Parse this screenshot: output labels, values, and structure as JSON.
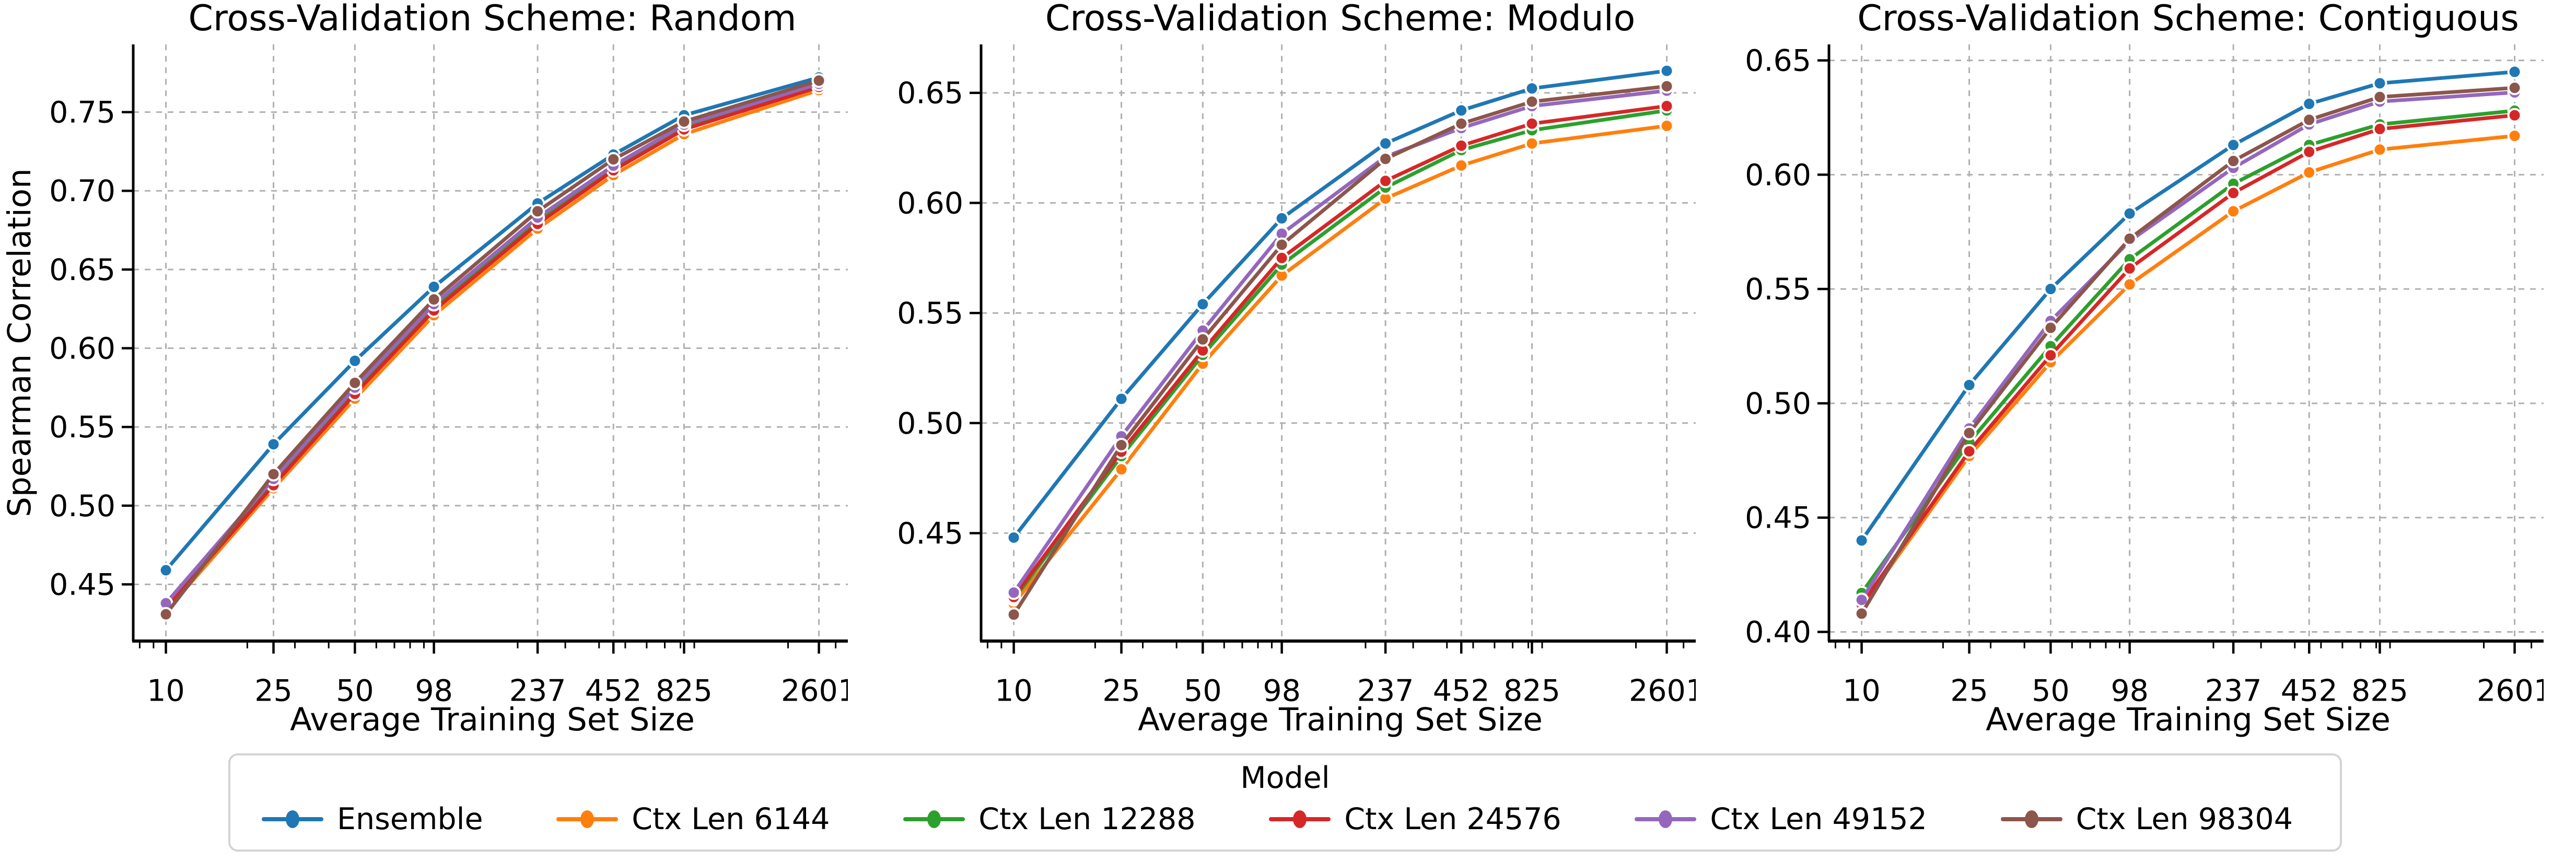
{
  "legend": {
    "title": "Model",
    "entries": [
      {
        "label": "Ensemble",
        "color": "#1f77b4"
      },
      {
        "label": "Ctx Len 6144",
        "color": "#ff7f0e"
      },
      {
        "label": "Ctx Len 12288",
        "color": "#2ca02c"
      },
      {
        "label": "Ctx Len 24576",
        "color": "#d62728"
      },
      {
        "label": "Ctx Len 49152",
        "color": "#9467bd"
      },
      {
        "label": "Ctx Len 98304",
        "color": "#8c564b"
      }
    ]
  },
  "chart_data": [
    {
      "type": "line",
      "title": "Cross-Validation Scheme: Random",
      "xlabel": "Average Training Set Size",
      "ylabel": "Spearman Correlation",
      "x_scale": "log",
      "x": [
        10,
        25,
        50,
        98,
        237,
        452,
        825,
        2601
      ],
      "x_tick_labels": [
        "10",
        "25",
        "50",
        "98",
        "237",
        "452",
        "825",
        "2601"
      ],
      "xlim": [
        7.57,
        3434
      ],
      "ylim": [
        0.414,
        0.793
      ],
      "yticks": [
        0.45,
        0.5,
        0.55,
        0.6,
        0.65,
        0.7,
        0.75
      ],
      "grid": true,
      "legend_position": "figure-bottom",
      "series": [
        {
          "name": "Ensemble",
          "color": "#1f77b4",
          "values": [
            0.459,
            0.539,
            0.592,
            0.639,
            0.692,
            0.723,
            0.748,
            0.772
          ]
        },
        {
          "name": "Ctx Len 6144",
          "color": "#ff7f0e",
          "values": [
            0.433,
            0.511,
            0.568,
            0.621,
            0.676,
            0.71,
            0.736,
            0.764
          ]
        },
        {
          "name": "Ctx Len 12288",
          "color": "#2ca02c",
          "values": [
            0.436,
            0.515,
            0.573,
            0.626,
            0.681,
            0.715,
            0.741,
            0.767
          ]
        },
        {
          "name": "Ctx Len 24576",
          "color": "#d62728",
          "values": [
            0.435,
            0.513,
            0.571,
            0.624,
            0.679,
            0.713,
            0.739,
            0.766
          ]
        },
        {
          "name": "Ctx Len 49152",
          "color": "#9467bd",
          "values": [
            0.438,
            0.517,
            0.575,
            0.628,
            0.683,
            0.716,
            0.742,
            0.768
          ]
        },
        {
          "name": "Ctx Len 98304",
          "color": "#8c564b",
          "values": [
            0.431,
            0.52,
            0.578,
            0.631,
            0.687,
            0.72,
            0.744,
            0.77
          ]
        }
      ]
    },
    {
      "type": "line",
      "title": "Cross-Validation Scheme: Modulo",
      "xlabel": "Average Training Set Size",
      "ylabel": "",
      "x_scale": "log",
      "x": [
        10,
        25,
        50,
        98,
        237,
        452,
        825,
        2601
      ],
      "x_tick_labels": [
        "10",
        "25",
        "50",
        "98",
        "237",
        "452",
        "825",
        "2601"
      ],
      "xlim": [
        7.57,
        3434
      ],
      "ylim": [
        0.401,
        0.672
      ],
      "yticks": [
        0.45,
        0.5,
        0.55,
        0.6,
        0.65
      ],
      "grid": true,
      "legend_position": "figure-bottom",
      "series": [
        {
          "name": "Ensemble",
          "color": "#1f77b4",
          "values": [
            0.448,
            0.511,
            0.554,
            0.593,
            0.627,
            0.642,
            0.652,
            0.66
          ]
        },
        {
          "name": "Ctx Len 6144",
          "color": "#ff7f0e",
          "values": [
            0.418,
            0.479,
            0.527,
            0.567,
            0.602,
            0.617,
            0.627,
            0.635
          ]
        },
        {
          "name": "Ctx Len 12288",
          "color": "#2ca02c",
          "values": [
            0.42,
            0.485,
            0.531,
            0.572,
            0.607,
            0.624,
            0.633,
            0.642
          ]
        },
        {
          "name": "Ctx Len 24576",
          "color": "#d62728",
          "values": [
            0.421,
            0.487,
            0.533,
            0.575,
            0.61,
            0.626,
            0.636,
            0.644
          ]
        },
        {
          "name": "Ctx Len 49152",
          "color": "#9467bd",
          "values": [
            0.423,
            0.494,
            0.542,
            0.586,
            0.621,
            0.634,
            0.644,
            0.651
          ]
        },
        {
          "name": "Ctx Len 98304",
          "color": "#8c564b",
          "values": [
            0.413,
            0.49,
            0.538,
            0.581,
            0.62,
            0.636,
            0.646,
            0.653
          ]
        }
      ]
    },
    {
      "type": "line",
      "title": "Cross-Validation Scheme: Contiguous",
      "xlabel": "Average Training Set Size",
      "ylabel": "",
      "x_scale": "log",
      "x": [
        10,
        25,
        50,
        98,
        237,
        452,
        825,
        2601
      ],
      "x_tick_labels": [
        "10",
        "25",
        "50",
        "98",
        "237",
        "452",
        "825",
        "2601"
      ],
      "xlim": [
        7.57,
        3434
      ],
      "ylim": [
        0.396,
        0.657
      ],
      "yticks": [
        0.4,
        0.45,
        0.5,
        0.55,
        0.6,
        0.65
      ],
      "grid": true,
      "legend_position": "figure-bottom",
      "series": [
        {
          "name": "Ensemble",
          "color": "#1f77b4",
          "values": [
            0.44,
            0.508,
            0.55,
            0.583,
            0.613,
            0.631,
            0.64,
            0.645
          ]
        },
        {
          "name": "Ctx Len 6144",
          "color": "#ff7f0e",
          "values": [
            0.411,
            0.477,
            0.518,
            0.552,
            0.584,
            0.601,
            0.611,
            0.617
          ]
        },
        {
          "name": "Ctx Len 12288",
          "color": "#2ca02c",
          "values": [
            0.417,
            0.483,
            0.525,
            0.563,
            0.596,
            0.613,
            0.622,
            0.628
          ]
        },
        {
          "name": "Ctx Len 24576",
          "color": "#d62728",
          "values": [
            0.412,
            0.479,
            0.521,
            0.559,
            0.592,
            0.61,
            0.62,
            0.626
          ]
        },
        {
          "name": "Ctx Len 49152",
          "color": "#9467bd",
          "values": [
            0.414,
            0.489,
            0.536,
            0.571,
            0.603,
            0.622,
            0.632,
            0.636
          ]
        },
        {
          "name": "Ctx Len 98304",
          "color": "#8c564b",
          "values": [
            0.408,
            0.487,
            0.533,
            0.572,
            0.606,
            0.624,
            0.634,
            0.638
          ]
        }
      ]
    }
  ]
}
